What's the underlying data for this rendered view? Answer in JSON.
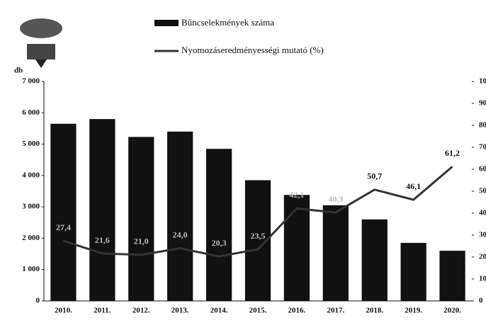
{
  "chart_data": {
    "type": "bar-line",
    "legend": [
      "Bűncselekmények száma",
      "Nyomozáseredményességi mutató (%)"
    ],
    "ylabel": "db",
    "categories": [
      "2010.",
      "2011.",
      "2012.",
      "2013.",
      "2014.",
      "2015.",
      "2016.",
      "2017.",
      "2018.",
      "2019.",
      "2020."
    ],
    "series": [
      {
        "name": "Bűncselekmények száma",
        "type": "bar",
        "color": "#111111",
        "values": [
          5650,
          5800,
          5230,
          5400,
          4850,
          3850,
          3380,
          3050,
          2600,
          1850,
          1600
        ]
      },
      {
        "name": "Nyomozáseredményességi mutató (%)",
        "type": "line",
        "axis": "y2",
        "color": "#333333",
        "values": [
          27.4,
          21.6,
          21.0,
          24.0,
          20.3,
          23.5,
          42.1,
          40.3,
          50.7,
          46.1,
          61.2
        ],
        "value_labels": [
          "27,4",
          "21,6",
          "21,0",
          "24,0",
          "20,3",
          "23,5",
          "42,1",
          "40,3",
          "50,7",
          "46,1",
          "61,2"
        ]
      }
    ],
    "ylim": [
      0,
      7000
    ],
    "yticks": [
      {
        "value": 0,
        "label": "0"
      },
      {
        "value": 1000,
        "label": "1 000"
      },
      {
        "value": 2000,
        "label": "2 000"
      },
      {
        "value": 3000,
        "label": "3 000"
      },
      {
        "value": 4000,
        "label": "4 000"
      },
      {
        "value": 5000,
        "label": "5 000"
      },
      {
        "value": 6000,
        "label": "6 000"
      },
      {
        "value": 7000,
        "label": "7 000"
      }
    ],
    "y2lim": [
      0,
      100
    ],
    "y2ticks": [
      0,
      10,
      20,
      30,
      40,
      50,
      60,
      70,
      80,
      90,
      100
    ]
  }
}
